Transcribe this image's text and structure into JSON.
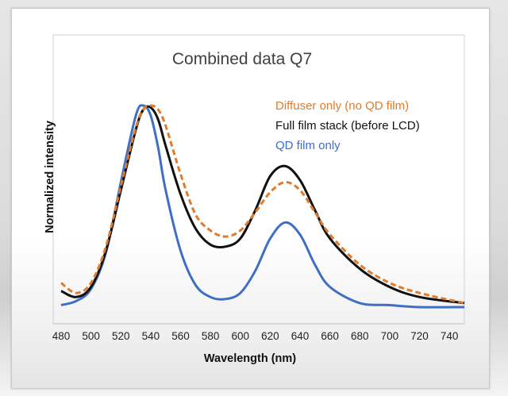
{
  "chart_data": {
    "type": "line",
    "title": "Combined data Q7",
    "xlabel": "Wavelength (nm)",
    "ylabel": "Normalized intensity",
    "xlim": [
      480,
      750
    ],
    "ylim": [
      0,
      1.0
    ],
    "x_ticks": [
      480,
      500,
      520,
      540,
      560,
      580,
      600,
      620,
      640,
      660,
      680,
      700,
      720,
      740
    ],
    "grid": false,
    "legend_position": "top-right",
    "series": [
      {
        "name": "Diffuser only (no QD film)",
        "color": "#e07a2c",
        "style": "dashed",
        "x": [
          480,
          490,
          500,
          510,
          520,
          530,
          535,
          540,
          545,
          550,
          560,
          570,
          580,
          590,
          600,
          610,
          620,
          630,
          640,
          650,
          660,
          680,
          700,
          720,
          750
        ],
        "y": [
          0.12,
          0.07,
          0.12,
          0.3,
          0.6,
          0.89,
          0.98,
          1.0,
          0.98,
          0.9,
          0.66,
          0.46,
          0.38,
          0.35,
          0.38,
          0.47,
          0.57,
          0.62,
          0.58,
          0.47,
          0.36,
          0.21,
          0.12,
          0.07,
          0.02
        ]
      },
      {
        "name": "Full film stack (before LCD)",
        "color": "#111111",
        "style": "solid",
        "x": [
          480,
          490,
          500,
          510,
          520,
          530,
          535,
          540,
          545,
          550,
          560,
          570,
          580,
          590,
          600,
          610,
          620,
          630,
          640,
          650,
          660,
          680,
          700,
          720,
          750
        ],
        "y": [
          0.08,
          0.05,
          0.1,
          0.28,
          0.58,
          0.88,
          0.98,
          0.99,
          0.93,
          0.8,
          0.56,
          0.39,
          0.31,
          0.3,
          0.34,
          0.48,
          0.65,
          0.7,
          0.63,
          0.48,
          0.34,
          0.19,
          0.1,
          0.05,
          0.02
        ]
      },
      {
        "name": "QD film only",
        "color": "#3f6fc5",
        "style": "solid",
        "x": [
          480,
          490,
          500,
          510,
          520,
          530,
          535,
          540,
          545,
          550,
          560,
          570,
          580,
          590,
          600,
          610,
          620,
          630,
          640,
          650,
          660,
          680,
          700,
          720,
          750
        ],
        "y": [
          0.01,
          0.03,
          0.09,
          0.27,
          0.62,
          0.95,
          1.0,
          0.95,
          0.79,
          0.58,
          0.28,
          0.11,
          0.05,
          0.04,
          0.07,
          0.18,
          0.34,
          0.42,
          0.36,
          0.21,
          0.1,
          0.02,
          0.01,
          0.0,
          0.0
        ]
      }
    ]
  }
}
